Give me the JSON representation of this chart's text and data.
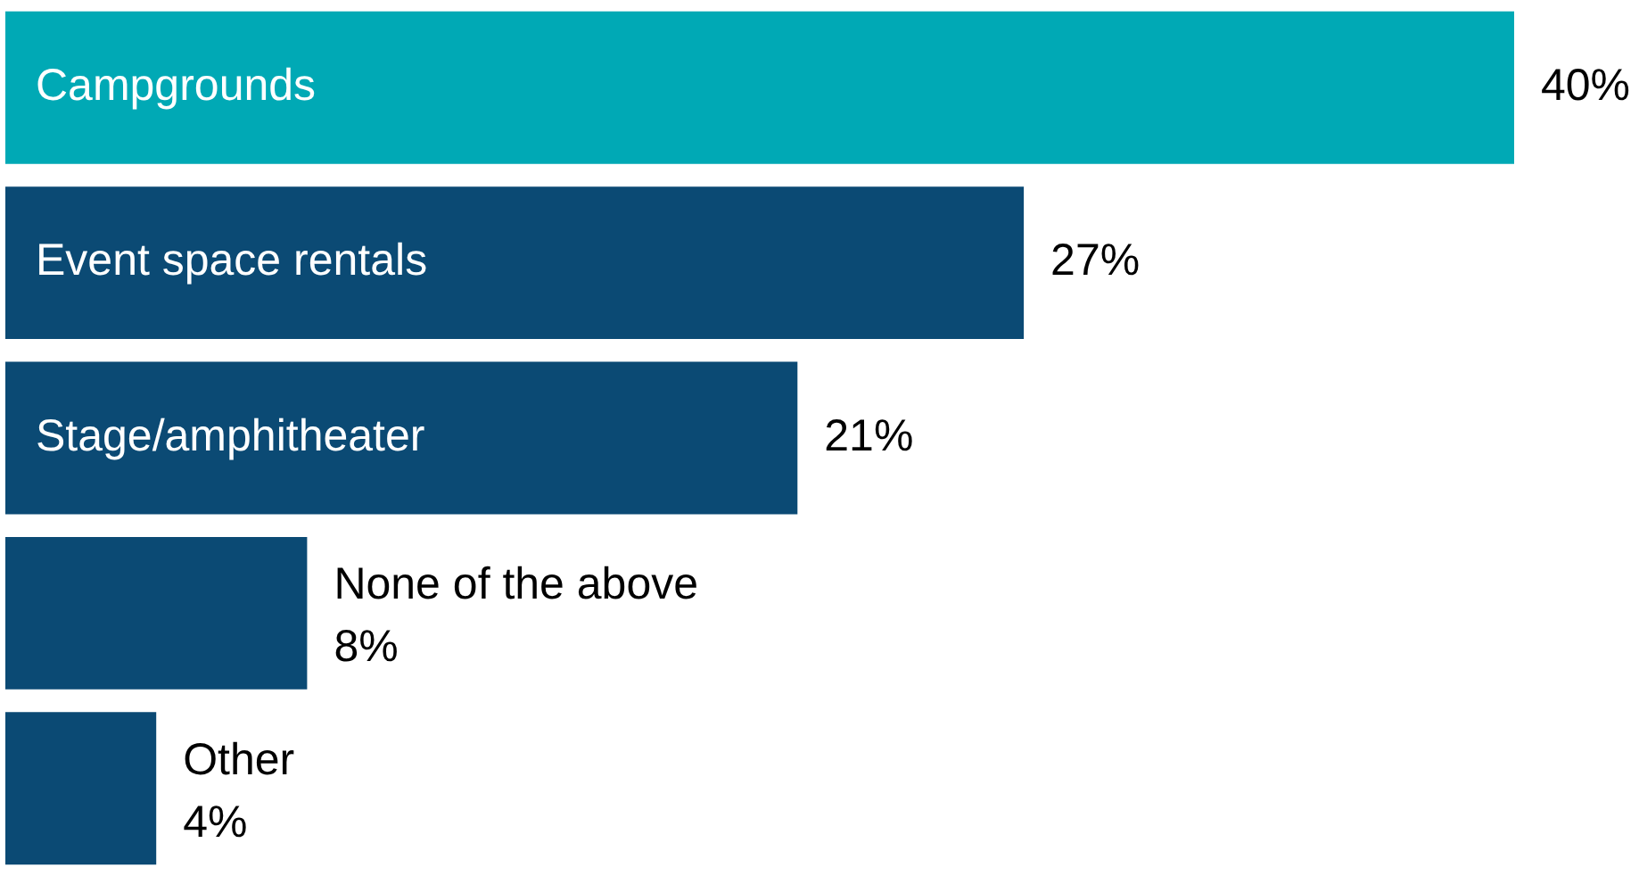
{
  "chart_data": {
    "type": "bar",
    "orientation": "horizontal",
    "categories": [
      "Campgrounds",
      "Event space rentals",
      "Stage/amphitheater",
      "None of the above",
      "Other"
    ],
    "values": [
      40,
      27,
      21,
      8,
      4
    ],
    "colors": [
      "#00a9b5",
      "#0b4a74",
      "#0b4a74",
      "#0b4a74",
      "#0b4a74"
    ],
    "value_labels": [
      "40%",
      "27%",
      "21%",
      "8%",
      "4%"
    ]
  }
}
